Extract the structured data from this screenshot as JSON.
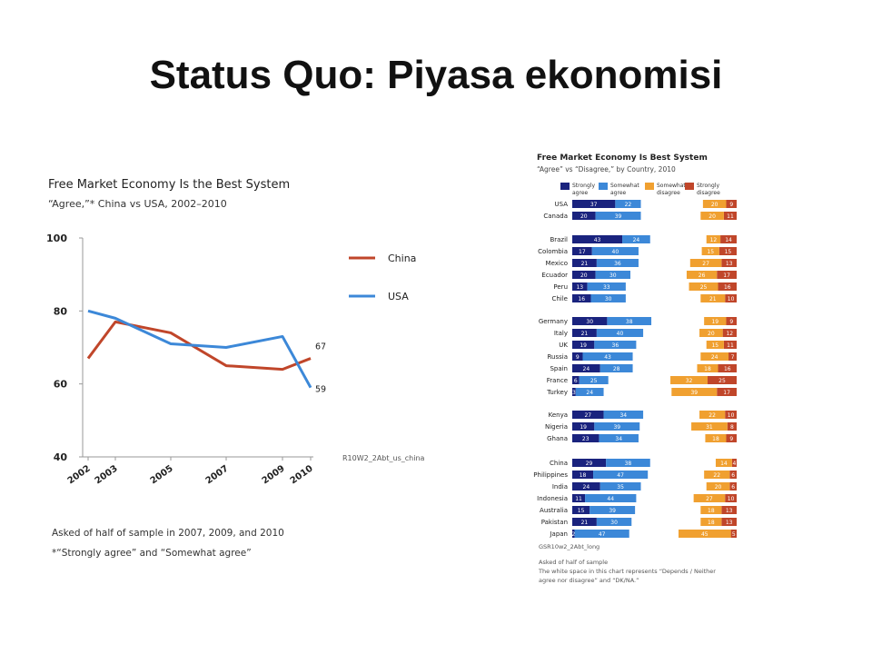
{
  "slide": {
    "title": "Status Quo: Piyasa ekonomisi"
  },
  "colors": {
    "china": "#c0462a",
    "usa": "#3c88d8",
    "strongly_agree": "#1a237e",
    "somewhat_agree": "#3c88d8",
    "somewhat_disagree": "#f0a030",
    "strongly_disagree": "#c0462a"
  },
  "chart_data": [
    {
      "type": "line",
      "title": "Free Market Economy Is the Best System",
      "subtitle": "“Agree,”* China vs USA, 2002–2010",
      "x": [
        2002,
        2003,
        2005,
        2007,
        2009,
        2010
      ],
      "x_tick_labels": [
        "2002",
        "2003",
        "2005",
        "2007",
        "2009",
        "2010"
      ],
      "y_ticks": [
        40,
        60,
        80,
        100
      ],
      "ylim": [
        40,
        100
      ],
      "series": [
        {
          "name": "China",
          "values": [
            67,
            77,
            74,
            65,
            64,
            67
          ],
          "end_label": "67"
        },
        {
          "name": "USA",
          "values": [
            80,
            78,
            71,
            70,
            73,
            59
          ],
          "end_label": "59"
        }
      ],
      "source_code": "R10W2_2Abt_us_china",
      "notes": [
        "Asked of half of sample in 2007, 2009, and 2010",
        "*“Strongly agree” and “Somewhat agree”"
      ],
      "legend_position": "right"
    },
    {
      "type": "bar",
      "title": "Free Market Economy Is Best System",
      "subtitle": "“Agree” vs “Disagree,” by Country, 2010",
      "legend": [
        "Strongly agree",
        "Somewhat agree",
        "Somewhat disagree",
        "Strongly disagree"
      ],
      "groups": [
        {
          "rows": [
            {
              "country": "USA",
              "sa": 37,
              "wa": 22,
              "wd": 20,
              "sd": 9
            },
            {
              "country": "Canada",
              "sa": 20,
              "wa": 39,
              "wd": 20,
              "sd": 11
            }
          ]
        },
        {
          "rows": [
            {
              "country": "Brazil",
              "sa": 43,
              "wa": 24,
              "wd": 12,
              "sd": 14
            },
            {
              "country": "Colombia",
              "sa": 17,
              "wa": 40,
              "wd": 15,
              "sd": 15
            },
            {
              "country": "Mexico",
              "sa": 21,
              "wa": 36,
              "wd": 27,
              "sd": 13
            },
            {
              "country": "Ecuador",
              "sa": 20,
              "wa": 30,
              "wd": 26,
              "sd": 17
            },
            {
              "country": "Peru",
              "sa": 13,
              "wa": 33,
              "wd": 25,
              "sd": 16
            },
            {
              "country": "Chile",
              "sa": 16,
              "wa": 30,
              "wd": 21,
              "sd": 10
            }
          ]
        },
        {
          "rows": [
            {
              "country": "Germany",
              "sa": 30,
              "wa": 38,
              "wd": 19,
              "sd": 9
            },
            {
              "country": "Italy",
              "sa": 21,
              "wa": 40,
              "wd": 20,
              "sd": 12
            },
            {
              "country": "UK",
              "sa": 19,
              "wa": 36,
              "wd": 15,
              "sd": 11
            },
            {
              "country": "Russia",
              "sa": 9,
              "wa": 43,
              "wd": 24,
              "sd": 7
            },
            {
              "country": "Spain",
              "sa": 24,
              "wa": 28,
              "wd": 18,
              "sd": 16
            },
            {
              "country": "France",
              "sa": 6,
              "wa": 25,
              "wd": 32,
              "sd": 25
            },
            {
              "country": "Turkey",
              "sa": 3,
              "wa": 24,
              "wd": 39,
              "sd": 17
            }
          ]
        },
        {
          "rows": [
            {
              "country": "Kenya",
              "sa": 27,
              "wa": 34,
              "wd": 22,
              "sd": 10
            },
            {
              "country": "Nigeria",
              "sa": 19,
              "wa": 39,
              "wd": 31,
              "sd": 8
            },
            {
              "country": "Ghana",
              "sa": 23,
              "wa": 34,
              "wd": 18,
              "sd": 9
            }
          ]
        },
        {
          "rows": [
            {
              "country": "China",
              "sa": 29,
              "wa": 38,
              "wd": 14,
              "sd": 4
            },
            {
              "country": "Philippines",
              "sa": 18,
              "wa": 47,
              "wd": 22,
              "sd": 6
            },
            {
              "country": "India",
              "sa": 24,
              "wa": 35,
              "wd": 20,
              "sd": 6
            },
            {
              "country": "Indonesia",
              "sa": 11,
              "wa": 44,
              "wd": 27,
              "sd": 10
            },
            {
              "country": "Australia",
              "sa": 15,
              "wa": 39,
              "wd": 18,
              "sd": 13
            },
            {
              "country": "Pakistan",
              "sa": 21,
              "wa": 30,
              "wd": 18,
              "sd": 13
            },
            {
              "country": "Japan",
              "sa": 2,
              "wa": 47,
              "wd": 45,
              "sd": 5
            }
          ]
        }
      ],
      "source_code": "GSR10w2_2Abt_long",
      "notes": [
        "Asked of half of sample",
        "The white space in this chart represents “Depends / Neither",
        "agree nor disagree” and “DK/NA.”"
      ]
    }
  ]
}
